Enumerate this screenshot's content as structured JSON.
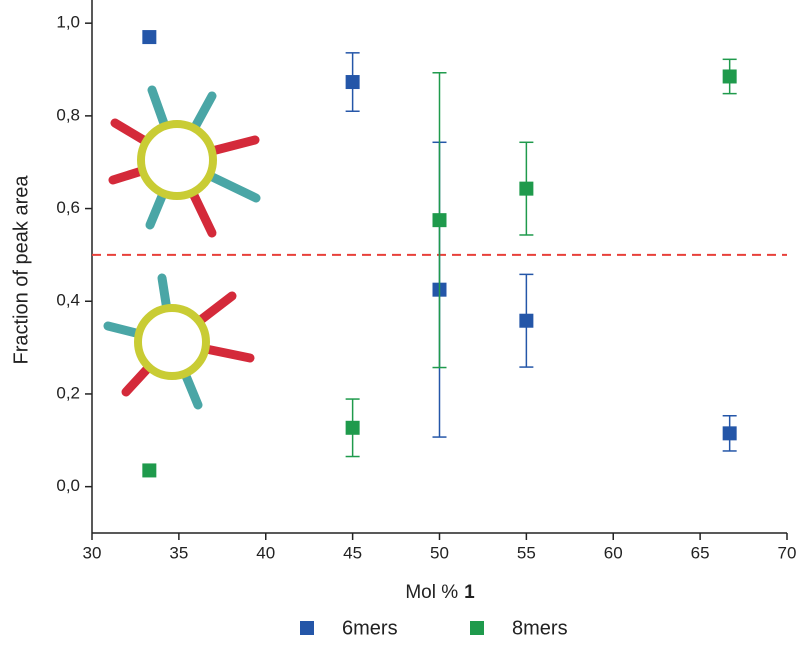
{
  "chart_data": {
    "type": "scatter",
    "x_label": {
      "text": "Mol %",
      "bold": "1"
    },
    "y_label": "Fraction of peak area",
    "xlim": [
      30,
      70
    ],
    "xticks": [
      30,
      35,
      40,
      45,
      50,
      55,
      60,
      65,
      70
    ],
    "ylim": [
      -0.1,
      1.05
    ],
    "yticks": [
      {
        "value": 0,
        "label": "0,0"
      },
      {
        "value": 0.2,
        "label": "0,2"
      },
      {
        "value": 0.4,
        "label": "0,4"
      },
      {
        "value": 0.6,
        "label": "0,6"
      },
      {
        "value": 0.8,
        "label": "0,8"
      },
      {
        "value": 1,
        "label": "1,0"
      }
    ],
    "reference_line": {
      "value": 0.5,
      "color": "#e8403a"
    },
    "legend": "bottom",
    "series": [
      {
        "name": "6mers",
        "color": "#2456a8",
        "x": [
          33.3,
          45,
          50,
          55,
          66.7
        ],
        "values": [
          0.97,
          0.873,
          0.425,
          0.358,
          0.115
        ],
        "errors": [
          null,
          0.063,
          0.318,
          0.1,
          0.038
        ]
      },
      {
        "name": "8mers",
        "color": "#1f9a4c",
        "x": [
          33.3,
          45,
          50,
          55,
          66.7
        ],
        "values": [
          0.035,
          0.127,
          0.575,
          0.643,
          0.885
        ],
        "errors": [
          null,
          0.062,
          0.318,
          0.1,
          0.037
        ]
      }
    ]
  }
}
